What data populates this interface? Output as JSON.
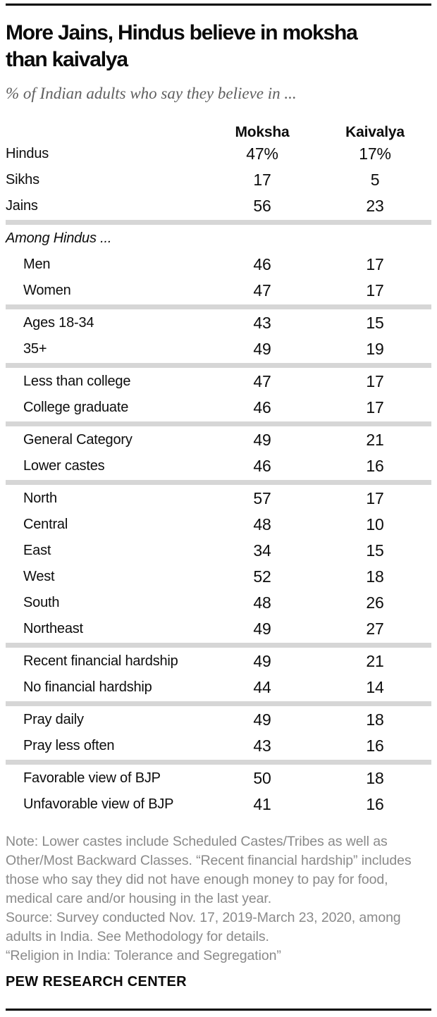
{
  "colors": {
    "rule": "#000000",
    "divider": "#d6d6d6",
    "title_text": "#0b0b0b",
    "subtitle_text": "#5f5f5f",
    "note_text": "#8a8a8a"
  },
  "header": {
    "title": "More Jains, Hindus believe in moksha than kaivalya",
    "title_lines": [
      "More Jains, Hindus believe in moksha",
      "than kaivalya"
    ],
    "subtitle": "% of Indian adults who say they believe in ..."
  },
  "table": {
    "columns": [
      "Moksha",
      "Kaivalya"
    ],
    "section_label": "Among Hindus ...",
    "groups": [
      {
        "rows": [
          {
            "label": "Hindus",
            "moksha": "47%",
            "kaivalya": "17%"
          },
          {
            "label": "Sikhs",
            "moksha": "17",
            "kaivalya": "5"
          },
          {
            "label": "Jains",
            "moksha": "56",
            "kaivalya": "23"
          }
        ]
      },
      {
        "rows": [
          {
            "label": "Men",
            "moksha": "46",
            "kaivalya": "17"
          },
          {
            "label": "Women",
            "moksha": "47",
            "kaivalya": "17"
          }
        ]
      },
      {
        "rows": [
          {
            "label": "Ages 18-34",
            "moksha": "43",
            "kaivalya": "15"
          },
          {
            "label": "35+",
            "moksha": "49",
            "kaivalya": "19"
          }
        ]
      },
      {
        "rows": [
          {
            "label": "Less than college",
            "moksha": "47",
            "kaivalya": "17"
          },
          {
            "label": "College graduate",
            "moksha": "46",
            "kaivalya": "17"
          }
        ]
      },
      {
        "rows": [
          {
            "label": "General Category",
            "moksha": "49",
            "kaivalya": "21"
          },
          {
            "label": "Lower castes",
            "moksha": "46",
            "kaivalya": "16"
          }
        ]
      },
      {
        "rows": [
          {
            "label": "North",
            "moksha": "57",
            "kaivalya": "17"
          },
          {
            "label": "Central",
            "moksha": "48",
            "kaivalya": "10"
          },
          {
            "label": "East",
            "moksha": "34",
            "kaivalya": "15"
          },
          {
            "label": "West",
            "moksha": "52",
            "kaivalya": "18"
          },
          {
            "label": "South",
            "moksha": "48",
            "kaivalya": "26"
          },
          {
            "label": "Northeast",
            "moksha": "49",
            "kaivalya": "27"
          }
        ]
      },
      {
        "rows": [
          {
            "label": "Recent financial hardship",
            "moksha": "49",
            "kaivalya": "21"
          },
          {
            "label": "No financial hardship",
            "moksha": "44",
            "kaivalya": "14"
          }
        ]
      },
      {
        "rows": [
          {
            "label": "Pray daily",
            "moksha": "49",
            "kaivalya": "18"
          },
          {
            "label": "Pray less often",
            "moksha": "43",
            "kaivalya": "16"
          }
        ]
      },
      {
        "rows": [
          {
            "label": "Favorable view of BJP",
            "moksha": "50",
            "kaivalya": "18"
          },
          {
            "label": "Unfavorable view of BJP",
            "moksha": "41",
            "kaivalya": "16"
          }
        ]
      }
    ]
  },
  "footer": {
    "note": "Note: Lower castes include Scheduled Castes/Tribes as well as Other/Most Backward Classes. “Recent financial hardship” includes those who say they did not have enough money to pay for food, medical care and/or housing in the last year.",
    "source": "Source: Survey conducted Nov. 17, 2019-March 23, 2020, among adults in India. See Methodology for details.",
    "report_title": "“Religion in India: Tolerance and Segregation”",
    "brand": "PEW RESEARCH CENTER"
  },
  "chart_data": {
    "type": "table",
    "title": "More Jains, Hindus believe in moksha than kaivalya",
    "subtitle": "% of Indian adults who say they believe in ...",
    "columns": [
      "Moksha",
      "Kaivalya"
    ],
    "unit": "%",
    "section_label": "Among Hindus ...",
    "rows": [
      {
        "label": "Hindus",
        "moksha": 47,
        "kaivalya": 17,
        "among_hindus": false
      },
      {
        "label": "Sikhs",
        "moksha": 17,
        "kaivalya": 5,
        "among_hindus": false
      },
      {
        "label": "Jains",
        "moksha": 56,
        "kaivalya": 23,
        "among_hindus": false
      },
      {
        "label": "Men",
        "moksha": 46,
        "kaivalya": 17,
        "among_hindus": true
      },
      {
        "label": "Women",
        "moksha": 47,
        "kaivalya": 17,
        "among_hindus": true
      },
      {
        "label": "Ages 18-34",
        "moksha": 43,
        "kaivalya": 15,
        "among_hindus": true
      },
      {
        "label": "35+",
        "moksha": 49,
        "kaivalya": 19,
        "among_hindus": true
      },
      {
        "label": "Less than college",
        "moksha": 47,
        "kaivalya": 17,
        "among_hindus": true
      },
      {
        "label": "College graduate",
        "moksha": 46,
        "kaivalya": 17,
        "among_hindus": true
      },
      {
        "label": "General Category",
        "moksha": 49,
        "kaivalya": 21,
        "among_hindus": true
      },
      {
        "label": "Lower castes",
        "moksha": 46,
        "kaivalya": 16,
        "among_hindus": true
      },
      {
        "label": "North",
        "moksha": 57,
        "kaivalya": 17,
        "among_hindus": true
      },
      {
        "label": "Central",
        "moksha": 48,
        "kaivalya": 10,
        "among_hindus": true
      },
      {
        "label": "East",
        "moksha": 34,
        "kaivalya": 15,
        "among_hindus": true
      },
      {
        "label": "West",
        "moksha": 52,
        "kaivalya": 18,
        "among_hindus": true
      },
      {
        "label": "South",
        "moksha": 48,
        "kaivalya": 26,
        "among_hindus": true
      },
      {
        "label": "Northeast",
        "moksha": 49,
        "kaivalya": 27,
        "among_hindus": true
      },
      {
        "label": "Recent financial hardship",
        "moksha": 49,
        "kaivalya": 21,
        "among_hindus": true
      },
      {
        "label": "No financial hardship",
        "moksha": 44,
        "kaivalya": 14,
        "among_hindus": true
      },
      {
        "label": "Pray daily",
        "moksha": 49,
        "kaivalya": 18,
        "among_hindus": true
      },
      {
        "label": "Pray less often",
        "moksha": 43,
        "kaivalya": 16,
        "among_hindus": true
      },
      {
        "label": "Favorable view of BJP",
        "moksha": 50,
        "kaivalya": 18,
        "among_hindus": true
      },
      {
        "label": "Unfavorable view of BJP",
        "moksha": 41,
        "kaivalya": 16,
        "among_hindus": true
      }
    ]
  }
}
